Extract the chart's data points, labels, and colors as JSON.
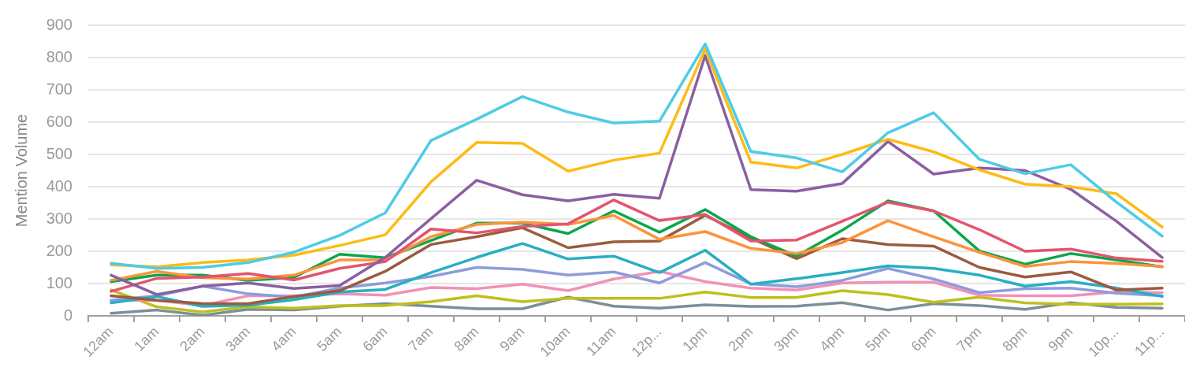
{
  "chart_data": {
    "type": "line",
    "ylabel": "Mention Volume",
    "categories": [
      "12am",
      "1am",
      "2am",
      "3am",
      "4am",
      "5am",
      "6am",
      "7am",
      "8am",
      "9am",
      "10am",
      "11am",
      "12p...",
      "1pm",
      "2pm",
      "3pm",
      "4pm",
      "5pm",
      "6pm",
      "7pm",
      "8pm",
      "9pm",
      "10p...",
      "11p..."
    ],
    "series": [
      {
        "color": "#4fcbe6",
        "values": [
          163,
          147,
          150,
          165,
          197,
          249,
          319,
          543,
          609,
          679,
          631,
          597,
          603,
          842,
          509,
          489,
          446,
          567,
          629,
          485,
          440,
          468,
          352,
          247
        ]
      },
      {
        "color": "#fdbb14",
        "values": [
          158,
          152,
          165,
          173,
          188,
          218,
          251,
          415,
          537,
          534,
          448,
          482,
          504,
          826,
          476,
          458,
          500,
          547,
          508,
          452,
          408,
          400,
          378,
          275
        ]
      },
      {
        "color": "#8b5fa3",
        "values": [
          126,
          66,
          92,
          102,
          85,
          94,
          181,
          301,
          420,
          375,
          356,
          376,
          364,
          806,
          391,
          386,
          410,
          540,
          439,
          458,
          450,
          392,
          293,
          181
        ]
      },
      {
        "color": "#e3546f",
        "values": [
          76,
          116,
          120,
          131,
          111,
          147,
          168,
          269,
          257,
          277,
          285,
          359,
          295,
          314,
          232,
          235,
          293,
          352,
          325,
          267,
          200,
          207,
          179,
          169
        ]
      },
      {
        "color": "#fd933a",
        "values": [
          110,
          138,
          118,
          114,
          126,
          173,
          173,
          245,
          283,
          290,
          283,
          311,
          237,
          261,
          209,
          193,
          227,
          295,
          245,
          197,
          153,
          168,
          162,
          153
        ]
      },
      {
        "color": "#0ba64b",
        "values": [
          106,
          126,
          126,
          110,
          119,
          191,
          180,
          233,
          287,
          287,
          255,
          325,
          259,
          329,
          245,
          185,
          265,
          356,
          325,
          201,
          160,
          193,
          173,
          152
        ]
      },
      {
        "color": "#9b5b3d",
        "values": [
          62,
          48,
          38,
          38,
          60,
          78,
          138,
          221,
          245,
          273,
          211,
          229,
          232,
          311,
          241,
          177,
          239,
          221,
          216,
          150,
          120,
          136,
          80,
          86
        ]
      },
      {
        "color": "#26afc4",
        "values": [
          40,
          60,
          29,
          33,
          50,
          74,
          82,
          134,
          181,
          224,
          176,
          185,
          134,
          203,
          98,
          115,
          134,
          155,
          147,
          126,
          92,
          106,
          86,
          60
        ]
      },
      {
        "color": "#8e9cda",
        "values": [
          48,
          62,
          92,
          68,
          58,
          86,
          102,
          122,
          150,
          144,
          126,
          136,
          102,
          165,
          99,
          90,
          110,
          147,
          114,
          72,
          84,
          86,
          70,
          62
        ]
      },
      {
        "color": "#f291b6",
        "values": [
          48,
          48,
          32,
          62,
          62,
          68,
          64,
          88,
          84,
          98,
          78,
          114,
          138,
          106,
          86,
          80,
          102,
          104,
          104,
          64,
          62,
          62,
          74,
          72
        ]
      },
      {
        "color": "#bfbf1d",
        "values": [
          80,
          28,
          12,
          28,
          24,
          32,
          32,
          44,
          62,
          44,
          54,
          54,
          54,
          74,
          57,
          57,
          78,
          66,
          42,
          58,
          40,
          36,
          36,
          37
        ]
      },
      {
        "color": "#7b8f99",
        "values": [
          8,
          18,
          2,
          20,
          18,
          30,
          38,
          30,
          22,
          22,
          58,
          30,
          24,
          34,
          29,
          30,
          41,
          18,
          38,
          32,
          20,
          41,
          26,
          24
        ]
      }
    ],
    "ylim": [
      0,
      900
    ],
    "yticks": [
      0,
      100,
      200,
      300,
      400,
      500,
      600,
      700,
      800,
      900
    ],
    "grid": "y",
    "legend": false,
    "marker": "none"
  }
}
